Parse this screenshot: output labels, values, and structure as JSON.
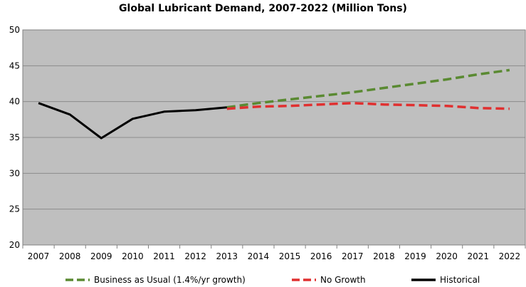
{
  "chart_data": {
    "type": "line",
    "title": "Global Lubricant Demand, 2007-2022 (Million Tons)",
    "xlabel": "",
    "ylabel": "",
    "categories": [
      "2007",
      "2008",
      "2009",
      "2010",
      "2011",
      "2012",
      "2013",
      "2014",
      "2015",
      "2016",
      "2017",
      "2018",
      "2019",
      "2020",
      "2021",
      "2022"
    ],
    "ylim": [
      20,
      50
    ],
    "yticks": [
      20,
      25,
      30,
      35,
      40,
      45,
      50
    ],
    "grid": true,
    "legend_placement": "bottom",
    "plot_background": "#bfbfbf",
    "series": [
      {
        "name": "Business as Usual (1.4%/yr growth)",
        "color": "#5a8a32",
        "style": "dashed",
        "values": [
          null,
          null,
          null,
          null,
          null,
          null,
          39.2,
          39.8,
          40.3,
          40.8,
          41.3,
          41.9,
          42.5,
          43.1,
          43.8,
          44.4
        ]
      },
      {
        "name": "No Growth",
        "color": "#e03030",
        "style": "dashed",
        "values": [
          null,
          null,
          null,
          null,
          null,
          null,
          39.0,
          39.3,
          39.4,
          39.6,
          39.8,
          39.6,
          39.5,
          39.4,
          39.1,
          39.0
        ]
      },
      {
        "name": "Historical",
        "color": "#000000",
        "style": "solid",
        "values": [
          39.8,
          38.2,
          34.9,
          37.6,
          38.6,
          38.8,
          39.2,
          null,
          null,
          null,
          null,
          null,
          null,
          null,
          null,
          null
        ]
      }
    ]
  }
}
